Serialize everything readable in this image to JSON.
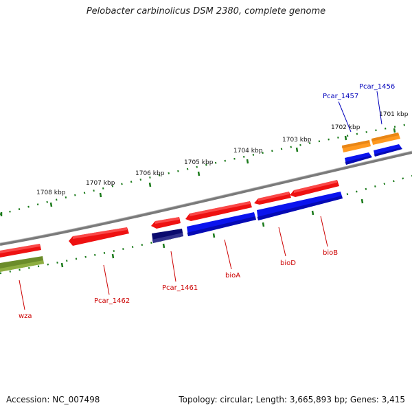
{
  "title": "Pelobacter carbinolicus DSM 2380, complete genome",
  "footer": {
    "accession": "Accession: NC_007498",
    "summary": "Topology: circular; Length: 3,665,893 bp; Genes: 3,415"
  },
  "ruler_labels": [
    "1701 kbp",
    "1702 kbp",
    "1703 kbp",
    "1704 kbp",
    "1705 kbp",
    "1706 kbp",
    "1707 kbp",
    "1708 kbp"
  ],
  "gene_labels": {
    "wza": "wza",
    "pcar1462": "Pcar_1462",
    "pcar1461": "Pcar_1461",
    "bioA": "bioA",
    "bioD": "bioD",
    "bioB": "bioB",
    "pcar1457": "Pcar_1457",
    "pcar1456": "Pcar_1456"
  },
  "colors": {
    "cds_red": "#ee1111",
    "cds_blue": "#0a14ee",
    "cds_orange": "#ff9920",
    "cds_olive": "#6b8c2a",
    "cds_navy": "#0a0a6e",
    "ruler_green": "#1a7a1a",
    "backbone": "#8a8a8a",
    "label_red": "#cc0000",
    "label_blue": "#0000bb"
  }
}
